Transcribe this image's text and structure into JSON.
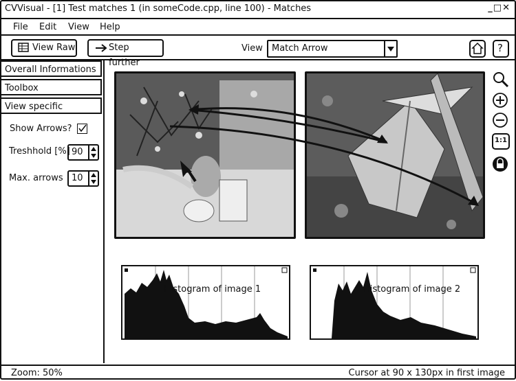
{
  "window": {
    "title": "CVVisual - [1] Test matches 1 (in someCode.cpp, line 100) - Matches"
  },
  "menu": {
    "file": "File",
    "edit": "Edit",
    "view": "View",
    "help": "Help"
  },
  "toolbar": {
    "view_raw": "View Raw",
    "step_further": "Step further",
    "view_label": "View",
    "view_select": "Match Arrow",
    "home_icon": "home-icon",
    "help_label": "?"
  },
  "sidebar": {
    "items": [
      {
        "label": "Overall Informations"
      },
      {
        "label": "Toolbox"
      },
      {
        "label": "View specific"
      }
    ],
    "show_arrows_label": "Show Arrows?",
    "show_arrows_checked": true,
    "threshold_label": "Treshhold [%]",
    "threshold_value": "90",
    "max_arrows_label": "Max. arrows",
    "max_arrows_value": "10"
  },
  "zoom_tools": {
    "zoom_icon": "magnifier-icon",
    "zoom_in_icon": "plus-icon",
    "zoom_out_icon": "minus-icon",
    "one_to_one": "1:1",
    "lock_icon": "lock-icon"
  },
  "histograms": [
    {
      "label": "Histogram of image 1"
    },
    {
      "label": "Histogram of image 2"
    }
  ],
  "status": {
    "zoom": "Zoom: 50%",
    "cursor": "Cursor at 90 x 130px in first image"
  }
}
